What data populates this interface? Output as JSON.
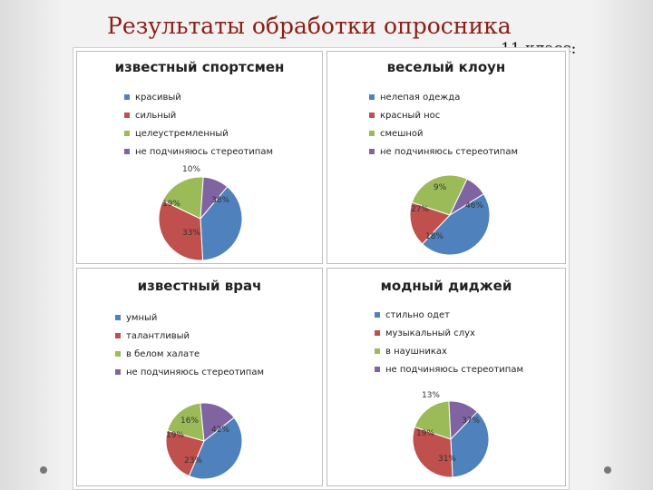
{
  "slide": {
    "title": "Результаты обработки опросника",
    "subtitle": "11 класс:"
  },
  "colors": [
    "#4f81bd",
    "#c0504d",
    "#9bbb59",
    "#8064a2"
  ],
  "chart_data": [
    {
      "type": "pie",
      "title": "известный спортсмен",
      "categories": [
        "красивый",
        "сильный",
        "целеустремленный",
        "не подчиняюсь стереотипам"
      ],
      "values": [
        38,
        33,
        19,
        10
      ],
      "labels": [
        "38%",
        "33%",
        "19%",
        "10%"
      ]
    },
    {
      "type": "pie",
      "title": "веселый клоун",
      "categories": [
        "нелепая одежда",
        "красный нос",
        "смешной",
        "не подчиняюсь стереотипам"
      ],
      "values": [
        46,
        18,
        27,
        9
      ],
      "labels": [
        "46%",
        "18%",
        "27%",
        "9%"
      ]
    },
    {
      "type": "pie",
      "title": "известный врач",
      "categories": [
        "умный",
        "талантливый",
        "в белом халате",
        "не подчиняюсь стереотипам"
      ],
      "values": [
        42,
        23,
        19,
        16
      ],
      "labels": [
        "42%",
        "23%",
        "19%",
        "16%"
      ]
    },
    {
      "type": "pie",
      "title": "модный диджей",
      "categories": [
        "стильно одет",
        "музыкальный слух",
        "в наушниках",
        "не подчиняюсь стереотипам"
      ],
      "values": [
        37,
        31,
        19,
        13
      ],
      "labels": [
        "37%",
        "31%",
        "19%",
        "13%"
      ]
    }
  ]
}
